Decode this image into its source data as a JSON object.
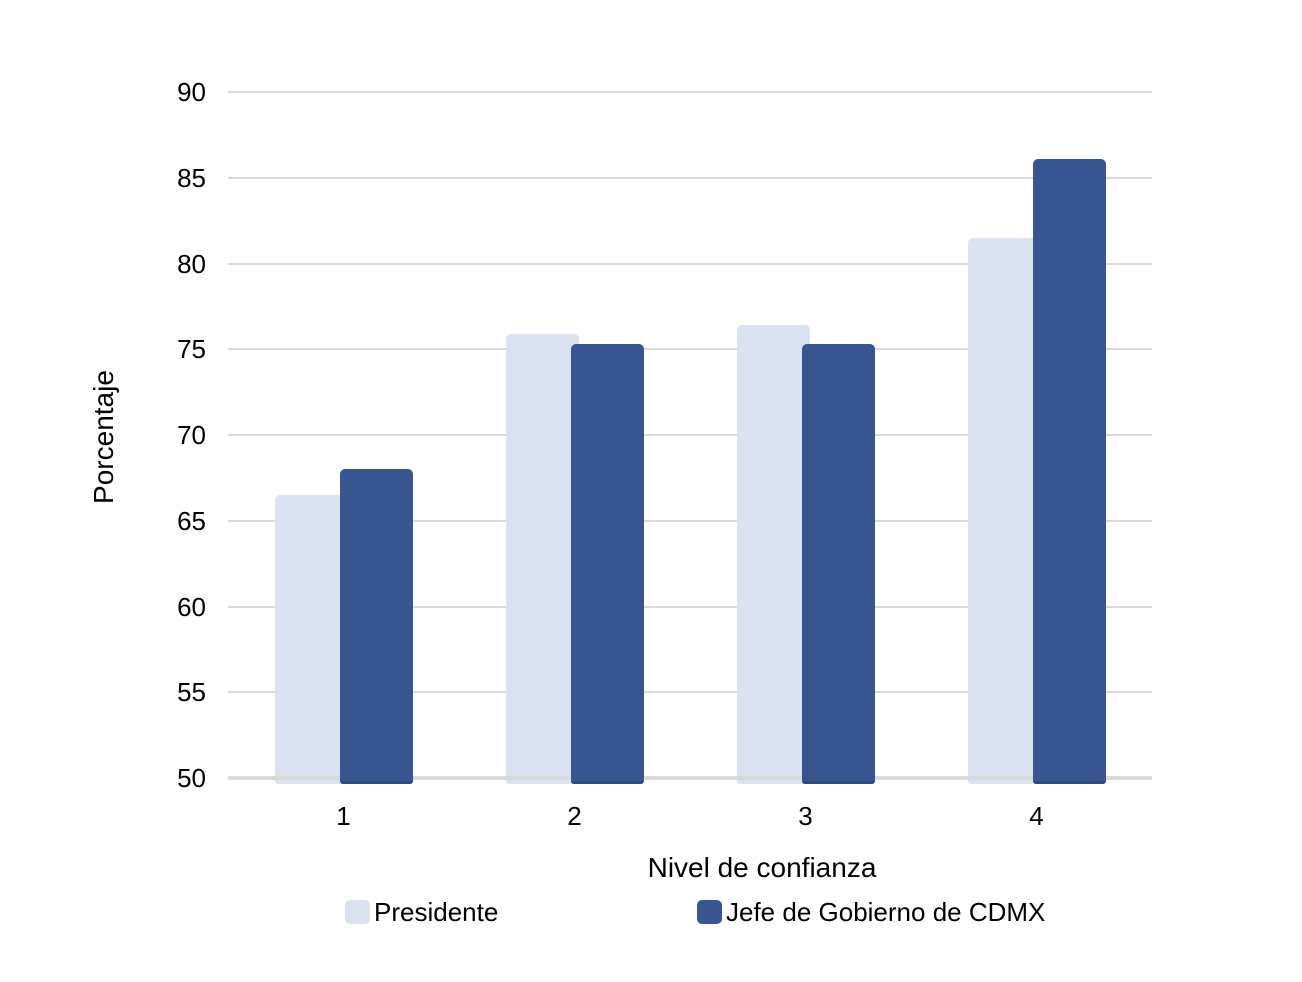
{
  "page": {
    "background": "#ffffff",
    "text_color": "#000000"
  },
  "chart_data": {
    "type": "bar",
    "title": "",
    "xlabel": "Nivel de confianza",
    "ylabel": "Porcentaje",
    "categories": [
      "1",
      "2",
      "3",
      "4"
    ],
    "series": [
      {
        "name": "Presidente",
        "color": "#dbe2f2",
        "values": [
          66.5,
          75.9,
          76.4,
          81.5
        ]
      },
      {
        "name": "Jefe de Gobierno de CDMX",
        "color": "#385592",
        "values": [
          68,
          75.3,
          75.3,
          86.1
        ]
      }
    ],
    "ylim": [
      50,
      90
    ],
    "ytick_step": 5,
    "yticks": [
      50,
      55,
      60,
      65,
      70,
      75,
      80,
      85,
      90
    ],
    "grid": true,
    "gridline_color": "#d9d9d9",
    "baseline_value": 50,
    "legend_position": "bottom"
  }
}
